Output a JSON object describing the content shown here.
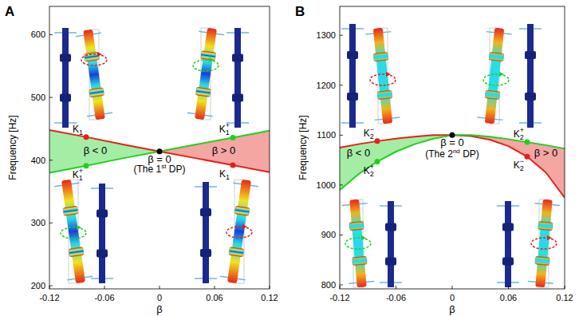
{
  "chart_data": [
    {
      "type": "line",
      "title": "A",
      "x_label": "β",
      "y_label": "Frequency [Hz]",
      "x": [
        -0.12,
        -0.08,
        -0.04,
        0,
        0.04,
        0.08,
        0.12
      ],
      "series": [
        {
          "color": "#e32119",
          "values": [
            448,
            437,
            425,
            414,
            403,
            392,
            381
          ]
        },
        {
          "color": "#1fd11f",
          "values": [
            380,
            391,
            403,
            414,
            425,
            436,
            447
          ]
        }
      ],
      "xlim": [
        -0.12,
        0.12
      ],
      "xticks": [
        -0.12,
        -0.06,
        0,
        0.06,
        0.12
      ],
      "ylim": [
        195,
        645
      ],
      "yticks": [
        200,
        300,
        400,
        500,
        600
      ],
      "points": [
        {
          "label": "K1",
          "x": -0.08,
          "y": 437,
          "color": "#e32119"
        },
        {
          "label": "K1+",
          "x": -0.08,
          "y": 391,
          "color": "#1fd11f"
        },
        {
          "label": "K1+",
          "x": 0.08,
          "y": 436,
          "color": "#1fd11f"
        },
        {
          "label": "K1",
          "x": 0.08,
          "y": 392,
          "color": "#e32119"
        },
        {
          "x": 0,
          "y": 414,
          "color": "#000000"
        }
      ],
      "annotations": [
        {
          "text": "β < 0",
          "x": -0.07,
          "y": 410
        },
        {
          "text": "β > 0",
          "x": 0.07,
          "y": 410
        },
        {
          "text": "β = 0",
          "x": 0,
          "y": 396
        },
        {
          "text": "(The 1st DP)",
          "x": 0,
          "y": 380
        }
      ]
    },
    {
      "type": "line",
      "title": "B",
      "x_label": "β",
      "y_label": "Frequency [Hz]",
      "x": [
        -0.12,
        -0.1,
        -0.08,
        -0.06,
        -0.04,
        -0.02,
        0,
        0.02,
        0.04,
        0.06,
        0.08,
        0.1,
        0.12
      ],
      "series": [
        {
          "color": "#e32119",
          "values": [
            1075,
            1082,
            1088,
            1093,
            1097,
            1100,
            1100,
            1098,
            1091,
            1078,
            1057,
            1025,
            975
          ]
        },
        {
          "color": "#1fd11f",
          "values": [
            990,
            1022,
            1047,
            1067,
            1082,
            1093,
            1100,
            1100,
            1097,
            1092,
            1086,
            1080,
            1073
          ]
        }
      ],
      "xlim": [
        -0.12,
        0.12
      ],
      "xticks": [
        -0.12,
        -0.06,
        0,
        0.06,
        0.12
      ],
      "ylim": [
        792,
        1358
      ],
      "yticks": [
        800,
        900,
        1000,
        1100,
        1200,
        1300
      ],
      "points": [
        {
          "label": "K2−",
          "x": -0.08,
          "y": 1088,
          "color": "#e32119"
        },
        {
          "label": "K2+",
          "x": -0.08,
          "y": 1047,
          "color": "#1fd11f"
        },
        {
          "label": "K2+",
          "x": 0.08,
          "y": 1086,
          "color": "#1fd11f"
        },
        {
          "label": "K2−",
          "x": 0.08,
          "y": 1057,
          "color": "#e32119"
        },
        {
          "x": 0,
          "y": 1100,
          "color": "#000000"
        }
      ],
      "annotations": [
        {
          "text": "β < 0",
          "x": -0.1,
          "y": 1058
        },
        {
          "text": "β > 0",
          "x": 0.1,
          "y": 1058
        },
        {
          "text": "β = 0",
          "x": 0,
          "y": 1078
        },
        {
          "text": "(The 2nd DP)",
          "x": 0,
          "y": 1056
        }
      ]
    }
  ]
}
